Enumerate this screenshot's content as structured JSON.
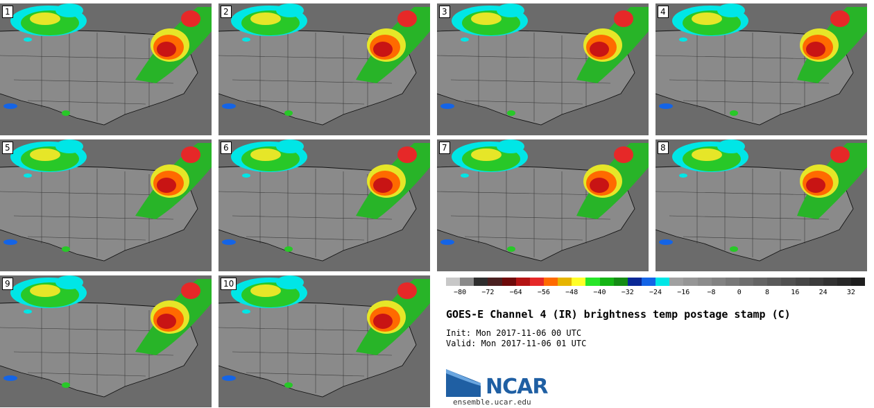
{
  "figure": {
    "title": "GOES-E Channel 4 (IR) brightness temp postage stamp (C)",
    "init": "Init: Mon 2017-11-06 00 UTC",
    "valid": "Valid: Mon 2017-11-06 01 UTC",
    "logo_name": "NCAR",
    "logo_url": "ensemble.ucar.edu"
  },
  "panels": [
    {
      "label": "1"
    },
    {
      "label": "2"
    },
    {
      "label": "3"
    },
    {
      "label": "4"
    },
    {
      "label": "5"
    },
    {
      "label": "6"
    },
    {
      "label": "7"
    },
    {
      "label": "8"
    },
    {
      "label": "9"
    },
    {
      "label": "10"
    }
  ],
  "colorbar": {
    "colors": [
      "#c8c8c8",
      "#8a8a8a",
      "#2e2e2e",
      "#4a2020",
      "#6e0a0a",
      "#b41414",
      "#e62828",
      "#ff6a00",
      "#e6b400",
      "#ffff28",
      "#28e628",
      "#14b414",
      "#148c14",
      "#0a2896",
      "#1464e6",
      "#00e6e6",
      "#a0a0a0",
      "#969696",
      "#8c8c8c",
      "#828282",
      "#787878",
      "#6e6e6e",
      "#646464",
      "#5a5a5a",
      "#505050",
      "#464646",
      "#3c3c3c",
      "#323232",
      "#282828",
      "#1e1e1e"
    ],
    "ticks": [
      "−80",
      "−72",
      "−64",
      "−56",
      "−48",
      "−40",
      "−32",
      "−24",
      "−16",
      "−8",
      "0",
      "8",
      "16",
      "24",
      "32"
    ]
  }
}
